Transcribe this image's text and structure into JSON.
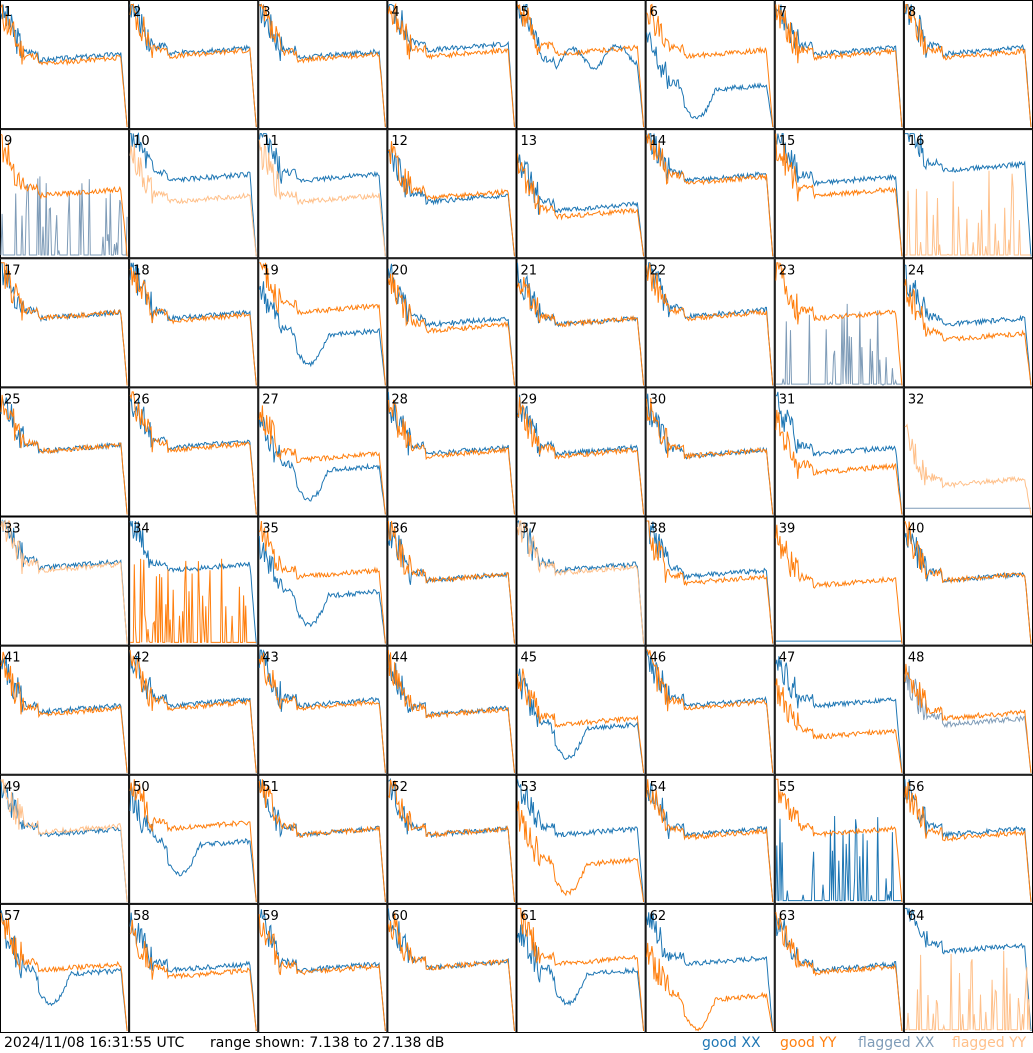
{
  "footer": {
    "timestamp": "2024/11/08 16:31:55 UTC",
    "range": "range shown: 7.138 to 27.138 dB"
  },
  "legend": [
    {
      "label": "good XX",
      "color": "#1f77b4"
    },
    {
      "label": "good YY",
      "color": "#ff7f0e"
    },
    {
      "label": "flagged XX",
      "color": "#7f9cb8"
    },
    {
      "label": "flagged YY",
      "color": "#ffc08a"
    }
  ],
  "chart_data": {
    "type": "line",
    "layout": "small-multiples 8x8",
    "ylim_db": [
      7.138,
      27.138
    ],
    "grid": false,
    "legend_position": "bottom-right",
    "series_styles": {
      "good_xx": "#1f77b4",
      "good_yy": "#ff7f0e",
      "flagged_xx": "#7f9cb8",
      "flagged_yy": "#ffc08a"
    },
    "panels": [
      {
        "label": "1",
        "xx": "good",
        "yy": "good",
        "xx_level": 0.55,
        "yy_level": 0.52,
        "xx_kind": "normal",
        "yy_kind": "normal"
      },
      {
        "label": "2",
        "xx": "good",
        "yy": "good",
        "xx_level": 0.6,
        "yy_level": 0.58,
        "xx_kind": "normal",
        "yy_kind": "normal"
      },
      {
        "label": "3",
        "xx": "good",
        "yy": "good",
        "xx_level": 0.57,
        "yy_level": 0.55,
        "xx_kind": "normal",
        "yy_kind": "normal"
      },
      {
        "label": "4",
        "xx": "good",
        "yy": "good",
        "xx_level": 0.63,
        "yy_level": 0.58,
        "xx_kind": "normal",
        "yy_kind": "normal"
      },
      {
        "label": "5",
        "xx": "good",
        "yy": "good",
        "xx_level": 0.55,
        "yy_level": 0.55,
        "xx_kind": "wavy",
        "yy_kind": "high"
      },
      {
        "label": "6",
        "xx": "good",
        "yy": "good",
        "xx_level": 0.3,
        "yy_level": 0.58,
        "xx_kind": "dip",
        "yy_kind": "normal"
      },
      {
        "label": "7",
        "xx": "good",
        "yy": "good",
        "xx_level": 0.6,
        "yy_level": 0.57,
        "xx_kind": "normal",
        "yy_kind": "normal"
      },
      {
        "label": "8",
        "xx": "good",
        "yy": "good",
        "xx_level": 0.6,
        "yy_level": 0.57,
        "xx_kind": "normal",
        "yy_kind": "normal"
      },
      {
        "label": "9",
        "xx": "flagged",
        "yy": "good",
        "xx_level": 0.1,
        "yy_level": 0.5,
        "xx_kind": "spikes",
        "yy_kind": "normal"
      },
      {
        "label": "10",
        "xx": "good",
        "yy": "flagged",
        "xx_level": 0.62,
        "yy_level": 0.45,
        "xx_kind": "normal",
        "yy_kind": "normal"
      },
      {
        "label": "11",
        "xx": "good",
        "yy": "flagged",
        "xx_level": 0.62,
        "yy_level": 0.45,
        "xx_kind": "normal",
        "yy_kind": "normal"
      },
      {
        "label": "12",
        "xx": "good",
        "yy": "good",
        "xx_level": 0.45,
        "yy_level": 0.48,
        "xx_kind": "normal",
        "yy_kind": "normal"
      },
      {
        "label": "13",
        "xx": "good",
        "yy": "good",
        "xx_level": 0.38,
        "yy_level": 0.33,
        "xx_kind": "normal",
        "yy_kind": "normal"
      },
      {
        "label": "14",
        "xx": "good",
        "yy": "good",
        "xx_level": 0.62,
        "yy_level": 0.6,
        "xx_kind": "normal",
        "yy_kind": "normal"
      },
      {
        "label": "15",
        "xx": "good",
        "yy": "good",
        "xx_level": 0.6,
        "yy_level": 0.5,
        "xx_kind": "normal",
        "yy_kind": "normal"
      },
      {
        "label": "16",
        "xx": "good",
        "yy": "flagged",
        "xx_level": 0.65,
        "yy_level": 0.1,
        "xx_kind": "high",
        "yy_kind": "spikes"
      },
      {
        "label": "17",
        "xx": "good",
        "yy": "good",
        "xx_level": 0.55,
        "yy_level": 0.55,
        "xx_kind": "normal",
        "yy_kind": "normal"
      },
      {
        "label": "18",
        "xx": "good",
        "yy": "good",
        "xx_level": 0.55,
        "yy_level": 0.53,
        "xx_kind": "normal",
        "yy_kind": "normal"
      },
      {
        "label": "19",
        "xx": "good",
        "yy": "good",
        "xx_level": 0.4,
        "yy_level": 0.6,
        "xx_kind": "dip",
        "yy_kind": "normal"
      },
      {
        "label": "20",
        "xx": "good",
        "yy": "good",
        "xx_level": 0.5,
        "yy_level": 0.45,
        "xx_kind": "normal",
        "yy_kind": "normal"
      },
      {
        "label": "21",
        "xx": "good",
        "yy": "good",
        "xx_level": 0.5,
        "yy_level": 0.5,
        "xx_kind": "normal",
        "yy_kind": "normal"
      },
      {
        "label": "22",
        "xx": "good",
        "yy": "good",
        "xx_level": 0.57,
        "yy_level": 0.55,
        "xx_kind": "normal",
        "yy_kind": "normal"
      },
      {
        "label": "23",
        "xx": "flagged",
        "yy": "good",
        "xx_level": 0.1,
        "yy_level": 0.55,
        "xx_kind": "spikes",
        "yy_kind": "normal"
      },
      {
        "label": "24",
        "xx": "good",
        "yy": "good",
        "xx_level": 0.5,
        "yy_level": 0.38,
        "xx_kind": "normal",
        "yy_kind": "normal"
      },
      {
        "label": "25",
        "xx": "good",
        "yy": "good",
        "xx_level": 0.52,
        "yy_level": 0.52,
        "xx_kind": "normal",
        "yy_kind": "normal"
      },
      {
        "label": "26",
        "xx": "good",
        "yy": "good",
        "xx_level": 0.55,
        "yy_level": 0.53,
        "xx_kind": "normal",
        "yy_kind": "normal"
      },
      {
        "label": "27",
        "xx": "good",
        "yy": "good",
        "xx_level": 0.35,
        "yy_level": 0.45,
        "xx_kind": "dip",
        "yy_kind": "normal"
      },
      {
        "label": "28",
        "xx": "good",
        "yy": "good",
        "xx_level": 0.5,
        "yy_level": 0.48,
        "xx_kind": "normal",
        "yy_kind": "normal"
      },
      {
        "label": "29",
        "xx": "good",
        "yy": "good",
        "xx_level": 0.5,
        "yy_level": 0.48,
        "xx_kind": "normal",
        "yy_kind": "normal"
      },
      {
        "label": "30",
        "xx": "good",
        "yy": "good",
        "xx_level": 0.48,
        "yy_level": 0.48,
        "xx_kind": "normal",
        "yy_kind": "normal"
      },
      {
        "label": "31",
        "xx": "good",
        "yy": "good",
        "xx_level": 0.5,
        "yy_level": 0.35,
        "xx_kind": "normal",
        "yy_kind": "normal"
      },
      {
        "label": "32",
        "xx": "flagged",
        "yy": "flagged",
        "xx_level": 0.05,
        "yy_level": 0.25,
        "xx_kind": "flat",
        "yy_kind": "normal"
      },
      {
        "label": "33",
        "xx": "good",
        "yy": "flagged",
        "xx_level": 0.62,
        "yy_level": 0.6,
        "xx_kind": "normal",
        "yy_kind": "normal"
      },
      {
        "label": "34",
        "xx": "good",
        "yy": "good",
        "xx_level": 0.55,
        "yy_level": 0.1,
        "xx_kind": "high",
        "yy_kind": "spikes"
      },
      {
        "label": "35",
        "xx": "good",
        "yy": "good",
        "xx_level": 0.38,
        "yy_level": 0.55,
        "xx_kind": "dip",
        "yy_kind": "normal"
      },
      {
        "label": "36",
        "xx": "good",
        "yy": "good",
        "xx_level": 0.52,
        "yy_level": 0.52,
        "xx_kind": "normal",
        "yy_kind": "normal"
      },
      {
        "label": "37",
        "xx": "good",
        "yy": "flagged",
        "xx_level": 0.6,
        "yy_level": 0.58,
        "xx_kind": "normal",
        "yy_kind": "normal"
      },
      {
        "label": "38",
        "xx": "good",
        "yy": "good",
        "xx_level": 0.55,
        "yy_level": 0.5,
        "xx_kind": "normal",
        "yy_kind": "normal"
      },
      {
        "label": "39",
        "xx": "good",
        "yy": "good",
        "xx_level": 0.02,
        "yy_level": 0.48,
        "xx_kind": "flat",
        "yy_kind": "normal"
      },
      {
        "label": "40",
        "xx": "good",
        "yy": "good",
        "xx_level": 0.52,
        "yy_level": 0.52,
        "xx_kind": "normal",
        "yy_kind": "normal"
      },
      {
        "label": "41",
        "xx": "good",
        "yy": "good",
        "xx_level": 0.5,
        "yy_level": 0.48,
        "xx_kind": "normal",
        "yy_kind": "normal"
      },
      {
        "label": "42",
        "xx": "good",
        "yy": "good",
        "xx_level": 0.55,
        "yy_level": 0.53,
        "xx_kind": "normal",
        "yy_kind": "normal"
      },
      {
        "label": "43",
        "xx": "good",
        "yy": "good",
        "xx_level": 0.55,
        "yy_level": 0.53,
        "xx_kind": "normal",
        "yy_kind": "normal"
      },
      {
        "label": "44",
        "xx": "good",
        "yy": "good",
        "xx_level": 0.48,
        "yy_level": 0.47,
        "xx_kind": "normal",
        "yy_kind": "normal"
      },
      {
        "label": "45",
        "xx": "good",
        "yy": "good",
        "xx_level": 0.35,
        "yy_level": 0.4,
        "xx_kind": "dip",
        "yy_kind": "normal"
      },
      {
        "label": "46",
        "xx": "good",
        "yy": "good",
        "xx_level": 0.55,
        "yy_level": 0.53,
        "xx_kind": "normal",
        "yy_kind": "normal"
      },
      {
        "label": "47",
        "xx": "good",
        "yy": "good",
        "xx_level": 0.55,
        "yy_level": 0.3,
        "xx_kind": "normal",
        "yy_kind": "normal"
      },
      {
        "label": "48",
        "xx": "flagged",
        "yy": "good",
        "xx_level": 0.4,
        "yy_level": 0.45,
        "xx_kind": "normal",
        "yy_kind": "normal"
      },
      {
        "label": "49",
        "xx": "good",
        "yy": "flagged",
        "xx_level": 0.55,
        "yy_level": 0.57,
        "xx_kind": "normal",
        "yy_kind": "normal"
      },
      {
        "label": "50",
        "xx": "good",
        "yy": "good",
        "xx_level": 0.45,
        "yy_level": 0.6,
        "xx_kind": "dip",
        "yy_kind": "normal"
      },
      {
        "label": "51",
        "xx": "good",
        "yy": "good",
        "xx_level": 0.55,
        "yy_level": 0.55,
        "xx_kind": "normal",
        "yy_kind": "normal"
      },
      {
        "label": "52",
        "xx": "good",
        "yy": "good",
        "xx_level": 0.55,
        "yy_level": 0.55,
        "xx_kind": "normal",
        "yy_kind": "normal"
      },
      {
        "label": "53",
        "xx": "good",
        "yy": "good",
        "xx_level": 0.55,
        "yy_level": 0.3,
        "xx_kind": "normal",
        "yy_kind": "dip"
      },
      {
        "label": "54",
        "xx": "good",
        "yy": "good",
        "xx_level": 0.55,
        "yy_level": 0.53,
        "xx_kind": "normal",
        "yy_kind": "normal"
      },
      {
        "label": "55",
        "xx": "good",
        "yy": "good",
        "xx_level": 0.15,
        "yy_level": 0.55,
        "xx_kind": "spikes",
        "yy_kind": "normal"
      },
      {
        "label": "56",
        "xx": "good",
        "yy": "good",
        "xx_level": 0.55,
        "yy_level": 0.52,
        "xx_kind": "normal",
        "yy_kind": "normal"
      },
      {
        "label": "57",
        "xx": "good",
        "yy": "good",
        "xx_level": 0.45,
        "yy_level": 0.5,
        "xx_kind": "dip",
        "yy_kind": "normal"
      },
      {
        "label": "58",
        "xx": "good",
        "yy": "good",
        "xx_level": 0.5,
        "yy_level": 0.45,
        "xx_kind": "normal",
        "yy_kind": "normal"
      },
      {
        "label": "59",
        "xx": "good",
        "yy": "good",
        "xx_level": 0.5,
        "yy_level": 0.48,
        "xx_kind": "normal",
        "yy_kind": "normal"
      },
      {
        "label": "60",
        "xx": "good",
        "yy": "good",
        "xx_level": 0.52,
        "yy_level": 0.52,
        "xx_kind": "normal",
        "yy_kind": "normal"
      },
      {
        "label": "61",
        "xx": "good",
        "yy": "good",
        "xx_level": 0.45,
        "yy_level": 0.55,
        "xx_kind": "dip",
        "yy_kind": "normal"
      },
      {
        "label": "62",
        "xx": "good",
        "yy": "good",
        "xx_level": 0.55,
        "yy_level": 0.25,
        "xx_kind": "normal",
        "yy_kind": "dip"
      },
      {
        "label": "63",
        "xx": "good",
        "yy": "good",
        "xx_level": 0.5,
        "yy_level": 0.48,
        "xx_kind": "normal",
        "yy_kind": "normal"
      },
      {
        "label": "64",
        "xx": "good",
        "yy": "flagged",
        "xx_level": 0.6,
        "yy_level": 0.05,
        "xx_kind": "high",
        "yy_kind": "spikes"
      }
    ]
  }
}
